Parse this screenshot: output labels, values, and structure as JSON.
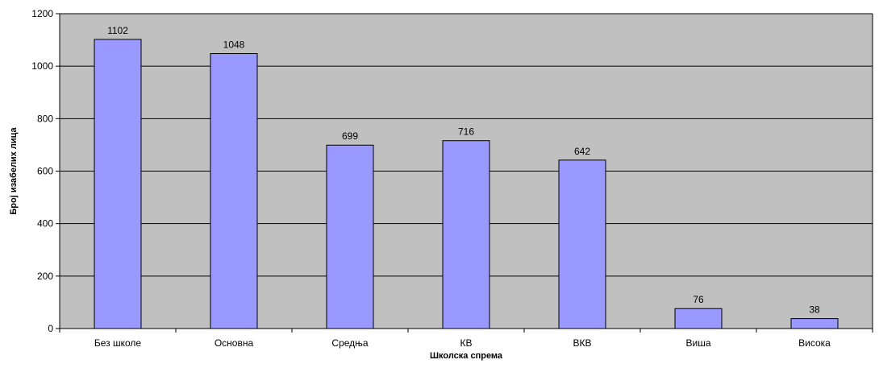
{
  "chart_data": {
    "type": "bar",
    "title": "",
    "xlabel": "Школска спрема",
    "ylabel": "Број изабелих лица",
    "categories": [
      "Без школе",
      "Основна",
      "Средња",
      "КВ",
      "ВКВ",
      "Виша",
      "Висока"
    ],
    "values": [
      1102,
      1048,
      699,
      716,
      642,
      76,
      38
    ],
    "data_labels": [
      "1102",
      "1048",
      "699",
      "716",
      "642",
      "76",
      "38"
    ],
    "ylim": [
      0,
      1200
    ],
    "yticks": [
      0,
      200,
      400,
      600,
      800,
      1000,
      1200
    ],
    "ytick_labels": [
      "0",
      "200",
      "400",
      "600",
      "800",
      "1000",
      "1200"
    ],
    "grid": "horizontal",
    "legend": "none",
    "colors": {
      "plot_background": "#c0c0c0",
      "bar_fill": "#9999ff",
      "bar_stroke": "#000000",
      "gridline": "#000000",
      "page_background": "#ffffff"
    }
  }
}
